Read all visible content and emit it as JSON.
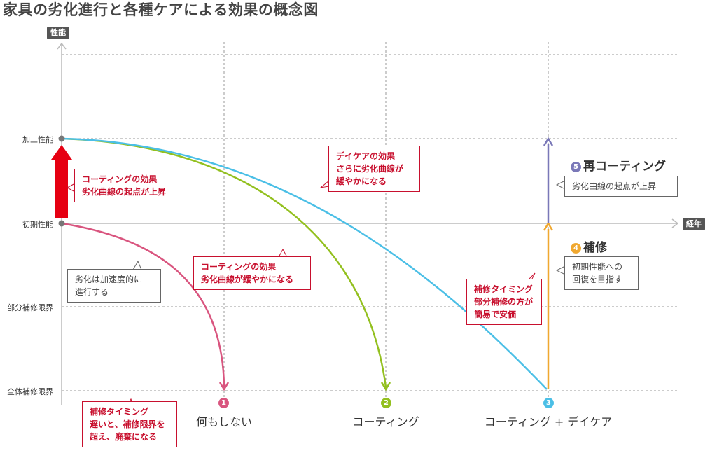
{
  "title": "家具の劣化進行と各種ケアによる効果の概念図",
  "axes": {
    "y_tag": "性能",
    "x_tag": "経年"
  },
  "levels": [
    "加工性能",
    "初期性能",
    "部分補修限界",
    "全体補修限界"
  ],
  "colors": {
    "none": "#d9557f",
    "coating": "#93c01f",
    "daycare": "#4bbfe6",
    "repair": "#f0a830",
    "recoat": "#7a78b8",
    "arrow": "#e60012",
    "accent_red": "#c8102e"
  },
  "scenarios": [
    {
      "num": "1",
      "label": "何もしない"
    },
    {
      "num": "2",
      "label": "コーティング"
    },
    {
      "num": "3",
      "label": "コーティング + デイケア"
    }
  ],
  "steps": [
    {
      "num": "4",
      "label": "補修"
    },
    {
      "num": "5",
      "label": "再コーティング"
    }
  ],
  "callouts": {
    "coating_effect": [
      "コーティングの効果",
      "劣化曲線の起点が上昇"
    ],
    "accelerate": [
      "劣化は加速度的に",
      "進行する"
    ],
    "coating_slower": [
      "コーティングの効果",
      "劣化曲線が緩やかになる"
    ],
    "daycare_effect": [
      "デイケアの効果",
      "さらに劣化曲線が",
      "緩やかになる"
    ],
    "recoat_note": [
      "劣化曲線の起点が上昇"
    ],
    "repair_note": [
      "初期性能への",
      "回復を目指す"
    ],
    "repair_timing": [
      "補修タイミング",
      "部分補修の方が",
      "簡易で安価"
    ],
    "late_timing": [
      "補修タイミング",
      "遅いと、補修限界を",
      "超え、廃棄になる"
    ]
  }
}
